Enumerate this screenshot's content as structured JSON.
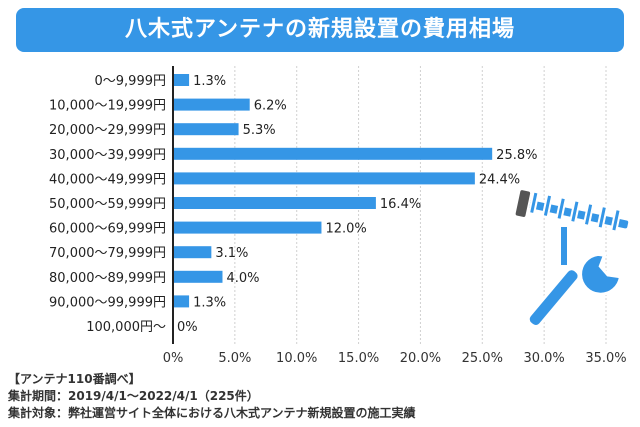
{
  "header": {
    "title": "八木式アンテナの新規設置の費用相場"
  },
  "chart_data": {
    "type": "bar",
    "orientation": "horizontal",
    "title": "八木式アンテナの新規設置の費用相場",
    "categories": [
      "0～9,999円",
      "10,000～19,999円",
      "20,000～29,999円",
      "30,000～39,999円",
      "40,000～49,999円",
      "50,000～59,999円",
      "60,000～69,999円",
      "70,000～79,999円",
      "80,000～89,999円",
      "90,000～99,999円",
      "100,000円～"
    ],
    "values": [
      1.3,
      6.2,
      5.3,
      25.8,
      24.4,
      16.4,
      12.0,
      3.1,
      4.0,
      1.3,
      0
    ],
    "value_labels": [
      "1.3%",
      "6.2%",
      "5.3%",
      "25.8%",
      "24.4%",
      "16.4%",
      "12.0%",
      "3.1%",
      "4.0%",
      "1.3%",
      "0%"
    ],
    "xlim": [
      0,
      35
    ],
    "xticks": [
      0,
      5,
      10,
      15,
      20,
      25,
      30,
      35
    ],
    "xtick_labels": [
      "0%",
      "5.0%",
      "10.0%",
      "15.0%",
      "20.0%",
      "25.0%",
      "30.0%",
      "35.0%"
    ],
    "grid": true,
    "bar_color": "#3596e6",
    "xlabel": "",
    "ylabel": ""
  },
  "source": {
    "line1": "【アンテナ110番調べ】",
    "line2": "集計期間：2019/4/1～2022/4/1（225件）",
    "line3": "集計対象：弊社運営サイト全体における八木式アンテナ新規設置の施工実績"
  },
  "colors": {
    "accent": "#3596e6",
    "illustration_fill": "#3596e6",
    "illustration_outline": "#ffffff"
  },
  "icons": {
    "antenna": "yagi-antenna-icon",
    "wrench": "wrench-icon"
  }
}
